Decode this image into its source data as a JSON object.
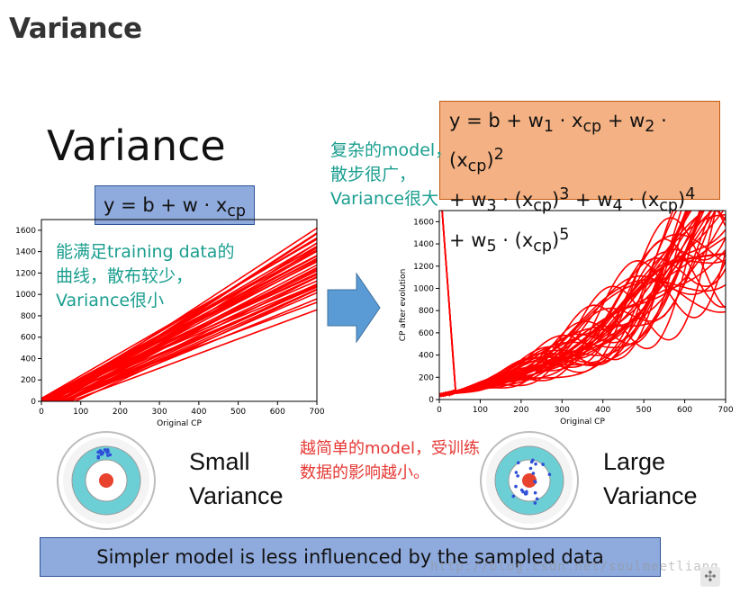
{
  "page_heading": "Variance",
  "slide_title": "Variance",
  "simple_formula": "y = b + w · x<sub>cp</sub>",
  "complex_formula_lines": [
    "y = b + w<sub>1</sub> · x<sub>cp</sub> + w<sub>2</sub> · (x<sub>cp</sub>)<sup>2</sup>",
    "+ w<sub>3</sub> · (x<sub>cp</sub>)<sup>3</sup> + w<sub>4</sub> · (x<sub>cp</sub>)<sup>4</sup>",
    "+ w<sub>5</sub> · (x<sub>cp</sub>)<sup>5</sup>"
  ],
  "note_simple": "能满足training data的曲线，散布较少，Variance很小",
  "note_complex": "复杂的model，散步很广，Variance很大",
  "note_center": "越简单的model，受训练数据的影响越小。",
  "small_variance_label": [
    "Small",
    "Variance"
  ],
  "large_variance_label": [
    "Large",
    "Variance"
  ],
  "conclusion": "Simpler model is less influenced by the sampled data",
  "watermark": "http://blog.csdn.net/soulmeetliang",
  "colors": {
    "line": "#ff0000",
    "target_outer": "#6dcfd6",
    "target_center": "#e8432f",
    "dots": "#2e4fd8",
    "arrow": "#5b9bd5"
  },
  "chart_data": [
    {
      "type": "line",
      "xlabel": "Original CP",
      "ylabel": "",
      "xlim": [
        0,
        700
      ],
      "ylim": [
        0,
        1700
      ],
      "xticks": [
        0,
        100,
        200,
        300,
        400,
        500,
        600,
        700
      ],
      "yticks": [
        0,
        200,
        400,
        600,
        800,
        1000,
        1200,
        1400,
        1600
      ],
      "description_series": "many linear fits y = b + w·x",
      "series_params": {
        "count": 40,
        "slope_range": [
          1.3,
          2.5
        ],
        "intercept_range": [
          -180,
          40
        ]
      }
    },
    {
      "type": "line",
      "xlabel": "Original CP",
      "ylabel": "CP after evolution",
      "xlim": [
        0,
        700
      ],
      "ylim": [
        0,
        1700
      ],
      "xticks": [
        0,
        100,
        200,
        300,
        400,
        500,
        600,
        700
      ],
      "yticks": [
        0,
        200,
        400,
        600,
        800,
        1000,
        1200,
        1400,
        1600
      ],
      "series_params": {
        "count": 40
      }
    }
  ]
}
